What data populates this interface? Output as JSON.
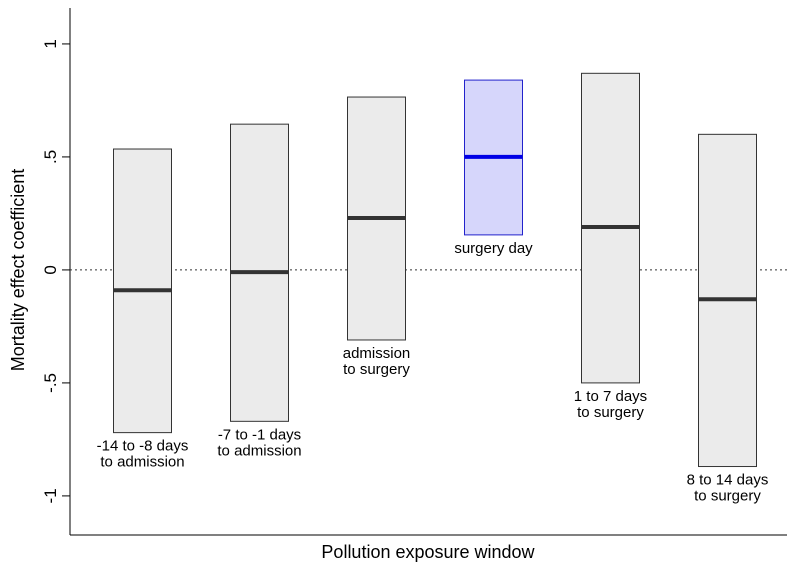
{
  "chart_data": {
    "type": "range_bar",
    "xlabel": "Pollution exposure window",
    "ylabel": "Mortality effect coefficient",
    "categories": [
      "-14 to -8 days\nto admission",
      "-7 to -1 days\nto admission",
      "admission\nto surgery",
      "surgery day",
      "1 to 7 days\nto surgery",
      "8 to 14 days\nto surgery"
    ],
    "low": [
      -0.72,
      -0.67,
      -0.31,
      0.155,
      -0.5,
      -0.87
    ],
    "high": [
      0.535,
      0.645,
      0.765,
      0.84,
      0.87,
      0.6
    ],
    "estimate": [
      -0.09,
      -0.01,
      0.23,
      0.5,
      0.19,
      -0.13
    ],
    "colors": [
      "#ebebeb",
      "#ebebeb",
      "#ebebeb",
      "#d6d6fb",
      "#ebebeb",
      "#ebebeb"
    ],
    "edge_colors": [
      "#333333",
      "#333333",
      "#333333",
      "#2222cc",
      "#333333",
      "#333333"
    ],
    "estimate_colors": [
      "#333333",
      "#333333",
      "#333333",
      "#0000e6",
      "#333333",
      "#333333"
    ],
    "ylim": [
      -1.173,
      1.159
    ],
    "yticks": [
      {
        "value": -1,
        "label": "-1"
      },
      {
        "value": -0.5,
        "label": "-.5"
      },
      0,
      {
        "value": 0.5,
        "label": ".5"
      },
      1
    ],
    "zero_line": true
  }
}
